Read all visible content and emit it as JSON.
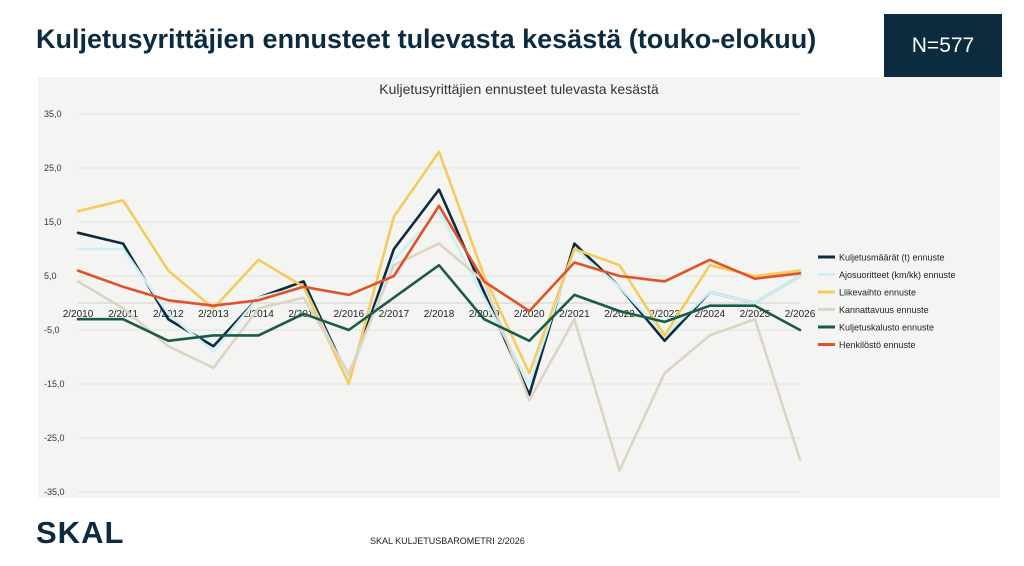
{
  "slide": {
    "title": "Kuljetusyrittäjien ennusteet tulevasta kesästä (touko-elokuu)",
    "n_label": "N=577",
    "logo_text": "SKAL",
    "footer": "SKAL KULJETUSBAROMETRI 2/2026"
  },
  "chart_data": {
    "type": "line",
    "title": "Kuljetusyrittäjien ennusteet tulevasta kesästä",
    "xlabel": "",
    "ylabel": "",
    "categories": [
      "2/2010",
      "2/2011",
      "2/2012",
      "2/2013",
      "2/2014",
      "2/2015",
      "2/2016",
      "2/2017",
      "2/2018",
      "2/2019",
      "2/2020",
      "2/2021",
      "2/2022",
      "2/2023",
      "2/2024",
      "2/2025",
      "2/2026"
    ],
    "ylim": [
      -35,
      35
    ],
    "yticks": [
      "35,0",
      "25,0",
      "15,0",
      "5,0",
      "-5,0",
      "-15,0",
      "-25,0",
      "-35,0"
    ],
    "ytick_values": [
      35,
      25,
      15,
      5,
      -5,
      -15,
      -25,
      -35
    ],
    "grid": true,
    "legend_position": "right",
    "series": [
      {
        "name": "Kuljetusmäärät (t) ennuste",
        "color": "#0d2b3e",
        "values": [
          13,
          11,
          -3,
          -8,
          1,
          4,
          -14,
          10,
          21,
          2,
          -17,
          11,
          3,
          -7,
          2,
          0,
          5
        ]
      },
      {
        "name": "Ajosuoritteet (km/kk) ennuste",
        "color": "#ccf0f5",
        "values": [
          10,
          10,
          -2,
          -9,
          1,
          3,
          -14,
          8,
          17,
          1,
          -15,
          10,
          3,
          -6,
          2,
          0,
          5
        ]
      },
      {
        "name": "Liikevaihto ennuste",
        "color": "#f6cb5e",
        "values": [
          17,
          19,
          6,
          -1,
          8,
          3,
          -15,
          16,
          28,
          5,
          -13,
          10,
          7,
          -6,
          7,
          5,
          6
        ]
      },
      {
        "name": "Kannattavuus ennuste",
        "color": "#ddd5c2",
        "values": [
          4,
          -1,
          -8,
          -12,
          -1,
          1,
          -13,
          7,
          11,
          4,
          -18,
          -3,
          -31,
          -13,
          -6,
          -3,
          -29
        ]
      },
      {
        "name": "Kuljetuskalusto ennuste",
        "color": "#1a5c45",
        "values": [
          -3,
          -3,
          -7,
          -6,
          -6,
          -2,
          -5,
          1,
          7,
          -3,
          -7,
          1.5,
          -1.5,
          -3.5,
          -0.5,
          -0.5,
          -5
        ]
      },
      {
        "name": "Henkilöstö ennuste",
        "color": "#e0532a",
        "values": [
          6,
          3,
          0.5,
          -0.5,
          0.5,
          3,
          1.5,
          5,
          18,
          4,
          -1.5,
          7.5,
          5,
          4,
          8,
          4.5,
          5.5
        ]
      }
    ]
  }
}
